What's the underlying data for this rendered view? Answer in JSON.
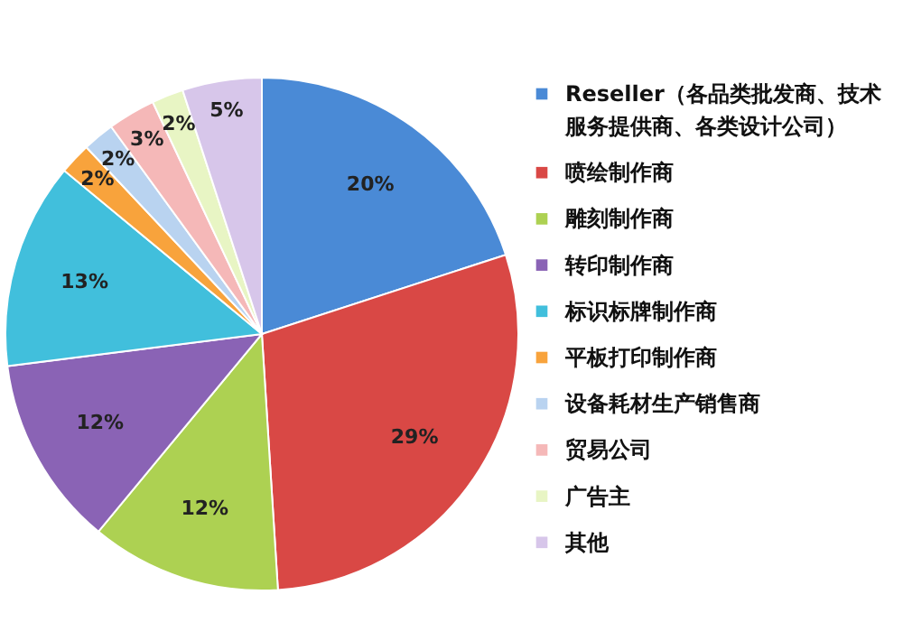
{
  "chart_data": {
    "type": "pie",
    "categories": [
      "Reseller（各品类批发商、技术服务提供商、各类设计公司）",
      "喷绘制作商",
      "雕刻制作商",
      "转印制作商",
      "标识标牌制作商",
      "平板打印制作商",
      "设备耗材生产销售商",
      "贸易公司",
      "广告主",
      "其他"
    ],
    "values": [
      20,
      29,
      12,
      12,
      13,
      2,
      2,
      3,
      2,
      5
    ],
    "value_labels": [
      "20%",
      "29%",
      "12%",
      "12%",
      "13%",
      "2%",
      "2%",
      "3%",
      "2%",
      "5%"
    ],
    "colors": [
      "#4a8ad6",
      "#d94845",
      "#add152",
      "#8a63b5",
      "#41bfdc",
      "#f8a33c",
      "#b9d3f0",
      "#f5b8b8",
      "#e8f5c4",
      "#d7c6ea"
    ],
    "legend": "right"
  }
}
